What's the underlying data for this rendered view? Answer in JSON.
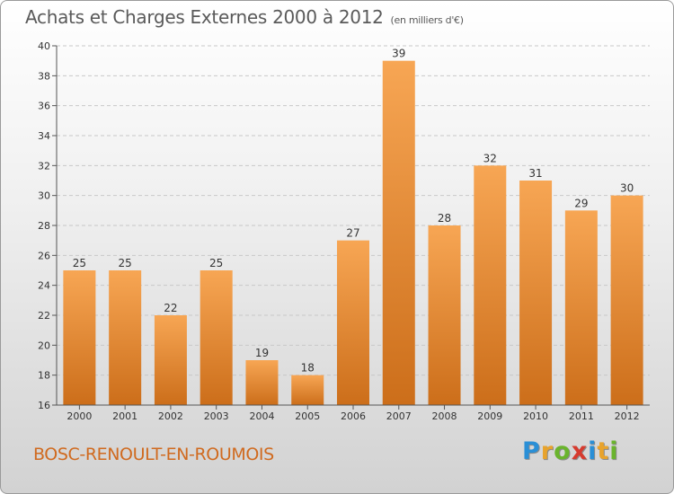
{
  "title": "Achats et Charges Externes 2000 à 2012",
  "unit_label": "(en milliers d'€)",
  "commune": "BOSC-RENOULT-EN-ROUMOIS",
  "brand": {
    "letters": [
      "P",
      "r",
      "o",
      "x",
      "i",
      "t",
      "i"
    ],
    "colors": [
      "#2a8fd6",
      "#e8a32c",
      "#6ab42d",
      "#d63b2f",
      "#2a8fd6",
      "#e8a32c",
      "#6ab42d"
    ]
  },
  "colors": {
    "bar_top": "#f7a654",
    "bar_bottom": "#cc6e1a",
    "commune_text": "#d06a1f"
  },
  "chart_data": {
    "type": "bar",
    "categories": [
      "2000",
      "2001",
      "2002",
      "2003",
      "2004",
      "2005",
      "2006",
      "2007",
      "2008",
      "2009",
      "2010",
      "2011",
      "2012"
    ],
    "values": [
      25,
      25,
      22,
      25,
      19,
      18,
      27,
      39,
      28,
      32,
      31,
      29,
      30
    ],
    "title": "Achats et Charges Externes 2000 à 2012",
    "subtitle": "(en milliers d'€)",
    "xlabel": "",
    "ylabel": "",
    "ylim": [
      16,
      40
    ],
    "yticks": [
      16,
      18,
      20,
      22,
      24,
      26,
      28,
      30,
      32,
      34,
      36,
      38,
      40
    ],
    "grid": true,
    "data_labels": true,
    "legend": "none"
  }
}
